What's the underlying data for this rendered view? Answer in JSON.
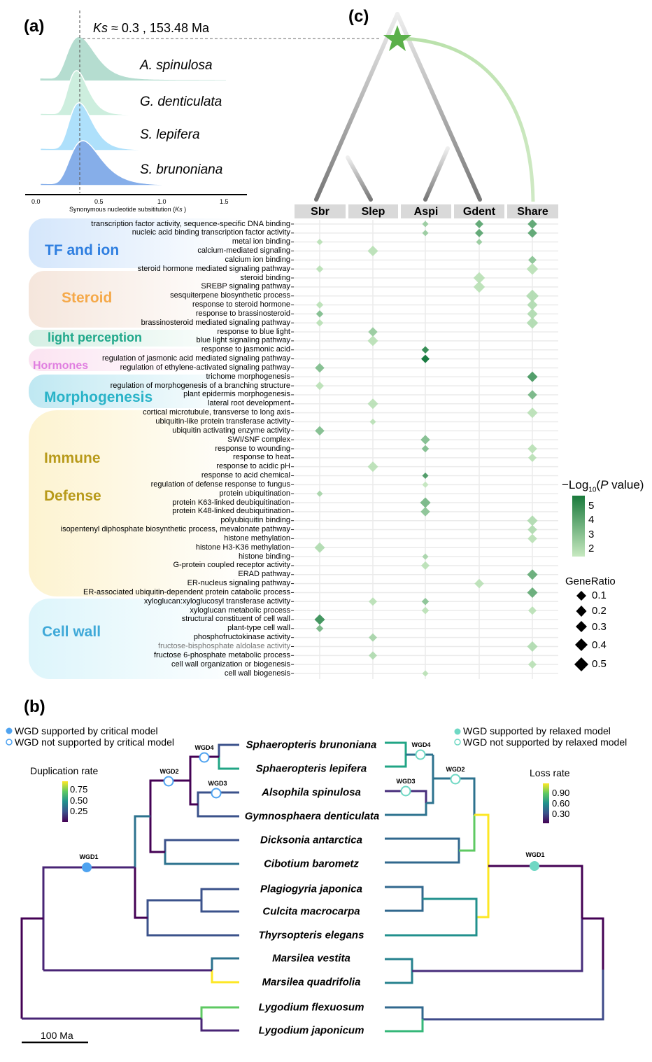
{
  "panel_a": {
    "label": "(a)",
    "annotation": "Ks ≈ 0.3 ,  153.48 Ma",
    "annotation_ks": "Ks",
    "annotation_rest": " ≈ 0.3 ,  153.48 Ma",
    "species": [
      "A. spinulosa",
      "G. denticulata",
      "S. lepifera",
      "S. brunoniana"
    ],
    "colors": [
      "#b5ddd0",
      "#cdeede",
      "#aee0fb",
      "#86aee9"
    ],
    "x_ticks": [
      "0.0",
      "0.5",
      "1.0",
      "1.5"
    ],
    "xlabel_main": "Synonymous nucleotide subsititution (",
    "xlabel_ks": "Ks",
    "xlabel_end": " )",
    "peak_ks": 0.3
  },
  "panel_c": {
    "label": "(c)",
    "categories": [
      {
        "label": "TF and ion",
        "color": "#2f7fe0"
      },
      {
        "label": "Steroid",
        "color": "#f5a94a"
      },
      {
        "label": "light perception",
        "color": "#1fa88a"
      },
      {
        "label": "Hormones",
        "color": "#e07fe0"
      },
      {
        "label": "Morphogenesis",
        "color": "#2ab3c8"
      },
      {
        "label": "Immune",
        "color": "#b89a1a"
      },
      {
        "label": "Defense",
        "color": "#b89a1a"
      },
      {
        "label": "Cell wall",
        "color": "#3fa9d8"
      }
    ],
    "legend_color_title": "−Log10(P value)",
    "legend_color_title_pre": "−Log",
    "legend_color_title_sub": "10",
    "legend_color_title_open": "(",
    "legend_color_title_p": "P",
    "legend_color_title_post": " value)",
    "legend_color_ticks": [
      "5",
      "4",
      "3",
      "2"
    ],
    "legend_size_title": "GeneRatio",
    "legend_size_ticks": [
      "0.1",
      "0.2",
      "0.3",
      "0.4",
      "0.5"
    ]
  },
  "chart_data": {
    "type": "scatter",
    "subtype": "GO enrichment dot plot (diamond markers)",
    "columns": [
      "Sbr",
      "Slep",
      "Aspi",
      "Gdent",
      "Share"
    ],
    "color_metric": "−Log10(P value)",
    "color_range": [
      1.5,
      5.5
    ],
    "color_low": "#c7e9c0",
    "color_high": "#006d2c",
    "size_metric": "GeneRatio",
    "size_range": [
      0.1,
      0.5
    ],
    "grid": true,
    "terms": [
      {
        "label": "transcription factor activity, sequence-specific DNA binding",
        "points": [
          [
            "Aspi",
            2.5,
            0.1
          ],
          [
            "Gdent",
            3.8,
            0.2
          ],
          [
            "Share",
            3.8,
            0.25
          ]
        ]
      },
      {
        "label": "nucleic acid binding transcription factor activity",
        "points": [
          [
            "Aspi",
            2.5,
            0.1
          ],
          [
            "Gdent",
            3.8,
            0.2
          ],
          [
            "Share",
            3.8,
            0.25
          ]
        ]
      },
      {
        "label": "metal ion binding",
        "points": [
          [
            "Sbr",
            1.8,
            0.1
          ],
          [
            "Gdent",
            2.5,
            0.1
          ]
        ]
      },
      {
        "label": "calcium-mediated signaling",
        "points": [
          [
            "Slep",
            1.8,
            0.3
          ]
        ]
      },
      {
        "label": "calcium ion binding",
        "points": [
          [
            "Share",
            2.8,
            0.2
          ]
        ]
      },
      {
        "label": "steroid hormone mediated signaling pathway",
        "points": [
          [
            "Sbr",
            1.8,
            0.15
          ],
          [
            "Share",
            1.8,
            0.35
          ]
        ]
      },
      {
        "label": "steroid binding",
        "points": [
          [
            "Gdent",
            1.8,
            0.35
          ]
        ]
      },
      {
        "label": "SREBP signaling pathway",
        "points": [
          [
            "Gdent",
            1.8,
            0.35
          ]
        ]
      },
      {
        "label": "sesquiterpene biosynthetic process",
        "points": [
          [
            "Share",
            2.0,
            0.4
          ]
        ]
      },
      {
        "label": "response to steroid hormone",
        "points": [
          [
            "Sbr",
            1.8,
            0.15
          ],
          [
            "Share",
            2.0,
            0.3
          ]
        ]
      },
      {
        "label": "response to brassinosteroid",
        "points": [
          [
            "Sbr",
            3.0,
            0.15
          ],
          [
            "Share",
            2.0,
            0.3
          ]
        ]
      },
      {
        "label": "brassinosteroid mediated signaling pathway",
        "points": [
          [
            "Sbr",
            1.8,
            0.15
          ],
          [
            "Share",
            2.0,
            0.35
          ]
        ]
      },
      {
        "label": "response to blue light",
        "points": [
          [
            "Slep",
            2.5,
            0.25
          ]
        ]
      },
      {
        "label": "blue light signaling pathway",
        "points": [
          [
            "Slep",
            1.8,
            0.3
          ]
        ]
      },
      {
        "label": "response to jasmonic acid",
        "points": [
          [
            "Aspi",
            4.8,
            0.15
          ]
        ]
      },
      {
        "label": "regulation of jasmonic acid mediated signaling pathway",
        "points": [
          [
            "Aspi",
            5.5,
            0.2
          ]
        ]
      },
      {
        "label": "regulation of ethylene-activated signaling pathway",
        "points": [
          [
            "Sbr",
            3.0,
            0.25
          ]
        ]
      },
      {
        "label": "trichome morphogenesis",
        "points": [
          [
            "Share",
            4.2,
            0.3
          ]
        ]
      },
      {
        "label": "regulation of morphogenesis of a branching structure",
        "points": [
          [
            "Sbr",
            1.8,
            0.2
          ]
        ]
      },
      {
        "label": "plant epidermis morphogenesis",
        "points": [
          [
            "Share",
            3.2,
            0.25
          ]
        ]
      },
      {
        "label": "lateral root development",
        "points": [
          [
            "Slep",
            1.8,
            0.3
          ]
        ]
      },
      {
        "label": "cortical microtubule, transverse to long axis",
        "points": [
          [
            "Share",
            1.8,
            0.3
          ]
        ]
      },
      {
        "label": "ubiquitin-like protein transferase activity",
        "points": [
          [
            "Slep",
            1.8,
            0.1
          ]
        ]
      },
      {
        "label": "ubiquitin activating enzyme activity",
        "points": [
          [
            "Sbr",
            3.0,
            0.25
          ]
        ]
      },
      {
        "label": "SWI/SNF complex",
        "points": [
          [
            "Aspi",
            3.0,
            0.25
          ]
        ]
      },
      {
        "label": "response to wounding",
        "points": [
          [
            "Aspi",
            3.0,
            0.15
          ],
          [
            "Share",
            1.8,
            0.25
          ]
        ]
      },
      {
        "label": "response to heat",
        "points": [
          [
            "Share",
            1.8,
            0.2
          ]
        ]
      },
      {
        "label": "response to acidic pH",
        "points": [
          [
            "Slep",
            1.8,
            0.3
          ]
        ]
      },
      {
        "label": "response to acid chemical",
        "points": [
          [
            "Aspi",
            4.2,
            0.1
          ]
        ]
      },
      {
        "label": "regulation of defense response to fungus",
        "points": [
          [
            "Aspi",
            1.6,
            0.1
          ]
        ]
      },
      {
        "label": "protein ubiquitination",
        "points": [
          [
            "Sbr",
            2.2,
            0.1
          ]
        ]
      },
      {
        "label": "protein K63-linked deubiquitination",
        "points": [
          [
            "Aspi",
            3.2,
            0.3
          ]
        ]
      },
      {
        "label": "protein K48-linked deubiquitination",
        "points": [
          [
            "Aspi",
            2.8,
            0.25
          ]
        ]
      },
      {
        "label": "polyubiquitin binding",
        "points": [
          [
            "Share",
            2.0,
            0.3
          ]
        ]
      },
      {
        "label": "isopentenyl diphosphate biosynthetic process, mevalonate pathway",
        "points": [
          [
            "Share",
            2.0,
            0.25
          ]
        ]
      },
      {
        "label": "histone methylation",
        "points": [
          [
            "Share",
            1.8,
            0.25
          ]
        ]
      },
      {
        "label": "histone H3-K36 methylation",
        "points": [
          [
            "Sbr",
            2.0,
            0.3
          ]
        ]
      },
      {
        "label": "histone binding",
        "points": [
          [
            "Aspi",
            2.2,
            0.1
          ]
        ]
      },
      {
        "label": "G-protein coupled receptor activity",
        "points": [
          [
            "Aspi",
            1.8,
            0.2
          ]
        ]
      },
      {
        "label": "ERAD pathway",
        "points": [
          [
            "Share",
            3.6,
            0.3
          ]
        ]
      },
      {
        "label": "ER-nucleus signaling pathway",
        "points": [
          [
            "Gdent",
            1.8,
            0.25
          ]
        ]
      },
      {
        "label": "ER-associated ubiquitin-dependent protein catabolic process",
        "points": [
          [
            "Share",
            3.6,
            0.3
          ]
        ]
      },
      {
        "label": "xyloglucan:xyloglucosyl transferase activity",
        "points": [
          [
            "Slep",
            1.8,
            0.2
          ],
          [
            "Aspi",
            2.8,
            0.15
          ]
        ]
      },
      {
        "label": "xyloglucan metabolic process",
        "points": [
          [
            "Aspi",
            1.8,
            0.15
          ],
          [
            "Share",
            1.8,
            0.2
          ]
        ]
      },
      {
        "label": "structural constituent of cell wall",
        "points": [
          [
            "Sbr",
            4.5,
            0.3
          ]
        ]
      },
      {
        "label": "plant-type cell wall",
        "points": [
          [
            "Sbr",
            3.2,
            0.15
          ]
        ]
      },
      {
        "label": "phosphofructokinase activity",
        "points": [
          [
            "Slep",
            2.2,
            0.2
          ]
        ]
      },
      {
        "label": "fructose-bisphosphate aldolase activity",
        "points": [
          [
            "Share",
            2.0,
            0.3
          ]
        ]
      },
      {
        "label": "fructose 6-phosphate metabolic process",
        "points": [
          [
            "Slep",
            2.0,
            0.2
          ]
        ]
      },
      {
        "label": "cell wall organization or biogenesis",
        "points": [
          [
            "Share",
            1.8,
            0.2
          ]
        ]
      },
      {
        "label": "cell wall biogenesis",
        "points": [
          [
            "Aspi",
            1.8,
            0.1
          ]
        ]
      }
    ]
  },
  "panel_b": {
    "label": "(b)",
    "legend_left": [
      "WGD supported by critical model",
      "WGD not supported by critical model"
    ],
    "legend_right": [
      "WGD supported by relaxed model",
      "WGD not supported by relaxed model"
    ],
    "dup_title": "Duplication rate",
    "dup_ticks": [
      "0.75",
      "0.50",
      "0.25"
    ],
    "loss_title": "Loss rate",
    "loss_ticks": [
      "0.90",
      "0.60",
      "0.30"
    ],
    "wgd_labels": [
      "WGD1",
      "WGD2",
      "WGD3",
      "WGD4"
    ],
    "species": [
      "Sphaeropteris brunoniana",
      "Sphaeropteris lepifera",
      "Alsophila spinulosa",
      "Gymnosphaera denticulata",
      "Dicksonia antarctica",
      "Cibotium barometz",
      "Plagiogyria japonica",
      "Culcita macrocarpa",
      "Thyrsopteris elegans",
      "Marsilea vestita",
      "Marsilea quadrifolia",
      "Lygodium flexuosum",
      "Lygodium japonicum"
    ],
    "scale_bar": "100 Ma",
    "critical_color": "#4fa3f0",
    "relaxed_color": "#6fd8c4"
  }
}
